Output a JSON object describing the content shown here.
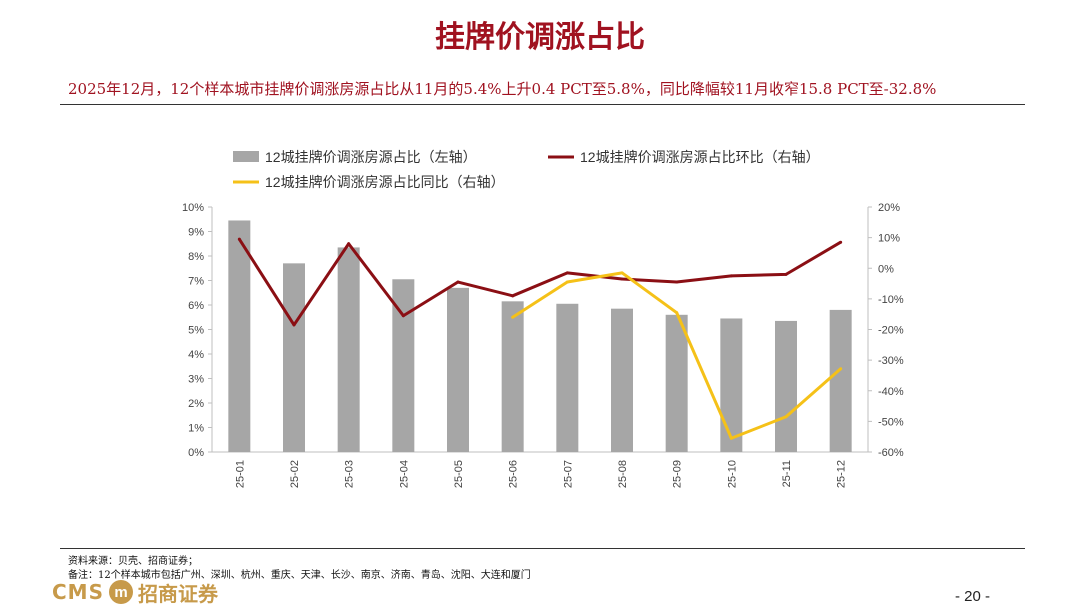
{
  "header": {
    "title": "挂牌价调涨占比",
    "subtitle": "2025年12月，12个样本城市挂牌价调涨房源占比从11月的5.4%上升0.4 PCT至5.8%，同比降幅较11月收窄15.8 PCT至-32.8%"
  },
  "chart_data": {
    "type": "bar",
    "categories": [
      "25-01",
      "25-02",
      "25-03",
      "25-04",
      "25-05",
      "25-06",
      "25-07",
      "25-08",
      "25-09",
      "25-10",
      "25-11",
      "25-12"
    ],
    "series": [
      {
        "name": "12城挂牌价调涨房源占比（左轴）",
        "type": "bar",
        "axis": "left",
        "color": "#a6a6a6",
        "values": [
          9.45,
          7.7,
          8.35,
          7.05,
          6.7,
          6.15,
          6.05,
          5.85,
          5.6,
          5.45,
          5.35,
          5.8
        ]
      },
      {
        "name": "12城挂牌价调涨房源占比环比（右轴）",
        "type": "line",
        "axis": "right",
        "color": "#8b0f14",
        "values": [
          9.5,
          -18.5,
          8.0,
          -15.5,
          -4.5,
          -9.0,
          -1.5,
          -3.5,
          -4.5,
          -2.5,
          -2.0,
          8.5
        ]
      },
      {
        "name": "12城挂牌价调涨房源占比同比（右轴）",
        "type": "line",
        "axis": "right",
        "color": "#f5c118",
        "values": [
          null,
          null,
          null,
          null,
          null,
          -16.0,
          -4.5,
          -1.5,
          -14.5,
          -55.5,
          -48.5,
          -32.8
        ]
      }
    ],
    "yleft": {
      "min": 0,
      "max": 10,
      "ticks": [
        0,
        1,
        2,
        3,
        4,
        5,
        6,
        7,
        8,
        9,
        10
      ],
      "tick_labels": [
        "0%",
        "1%",
        "2%",
        "3%",
        "4%",
        "5%",
        "6%",
        "7%",
        "8%",
        "9%",
        "10%"
      ]
    },
    "yright": {
      "min": -60,
      "max": 20,
      "ticks": [
        -60,
        -50,
        -40,
        -30,
        -20,
        -10,
        0,
        10,
        20
      ],
      "tick_labels": [
        "-60%",
        "-50%",
        "-40%",
        "-30%",
        "-20%",
        "-10%",
        "0%",
        "10%",
        "20%"
      ]
    },
    "legend_position": "top",
    "grid": false
  },
  "footer": {
    "source": "资料来源：贝壳、招商证券；",
    "note": "备注：12个样本城市包括广州、深圳、杭州、重庆、天津、长沙、南京、济南、青岛、沈阳、大连和厦门",
    "logo_text": "CMS",
    "logo_emblem": "m",
    "company": "招商证券",
    "page": "- 20 -"
  }
}
